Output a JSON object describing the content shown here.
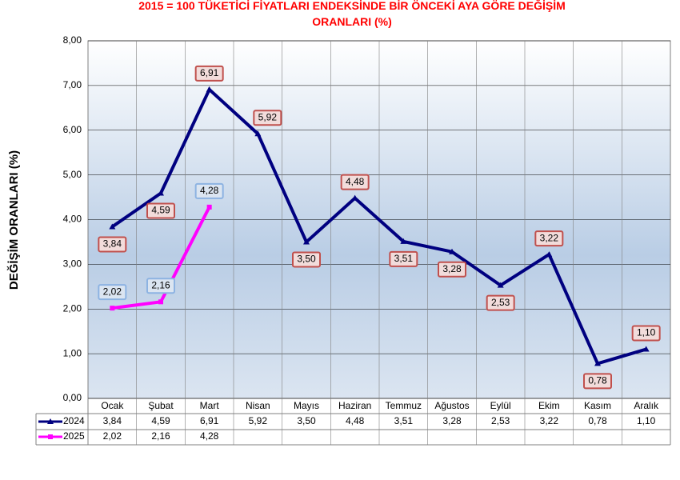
{
  "chart_data": {
    "type": "line",
    "title": "2015 = 100 TÜKETİCİ FİYATLARI ENDEKSİNDE BİR ÖNCEKİ AYA GÖRE DEĞİŞİM ORANLARI (%)",
    "y_label": "DEĞİŞİM ORANLARI (%)",
    "categories": [
      "Ocak",
      "Şubat",
      "Mart",
      "Nisan",
      "Mayıs",
      "Haziran",
      "Temmuz",
      "Ağustos",
      "Eylül",
      "Ekim",
      "Kasım",
      "Aralık"
    ],
    "series": [
      {
        "name": "2024",
        "color": "#000080",
        "values": [
          3.84,
          4.59,
          6.91,
          5.92,
          3.5,
          4.48,
          3.51,
          3.28,
          2.53,
          3.22,
          0.78,
          1.1
        ],
        "value_labels": [
          "3,84",
          "4,59",
          "6,91",
          "5,92",
          "3,50",
          "4,48",
          "3,51",
          "3,28",
          "2,53",
          "3,22",
          "0,78",
          "1,10"
        ]
      },
      {
        "name": "2025",
        "color": "#ff00ff",
        "values": [
          2.02,
          2.16,
          4.28,
          null,
          null,
          null,
          null,
          null,
          null,
          null,
          null,
          null
        ],
        "value_labels": [
          "2,02",
          "2,16",
          "4,28",
          null,
          null,
          null,
          null,
          null,
          null,
          null,
          null,
          null
        ]
      }
    ],
    "ylim": [
      0,
      8
    ],
    "yticks": [
      {
        "value": 0,
        "label": "0,00"
      },
      {
        "value": 1,
        "label": "1,00"
      },
      {
        "value": 2,
        "label": "2,00"
      },
      {
        "value": 3,
        "label": "3,00"
      },
      {
        "value": 4,
        "label": "4,00"
      },
      {
        "value": 5,
        "label": "5,00"
      },
      {
        "value": 6,
        "label": "6,00"
      },
      {
        "value": 7,
        "label": "7,00"
      },
      {
        "value": 8,
        "label": "8,00"
      }
    ],
    "grid": true
  }
}
